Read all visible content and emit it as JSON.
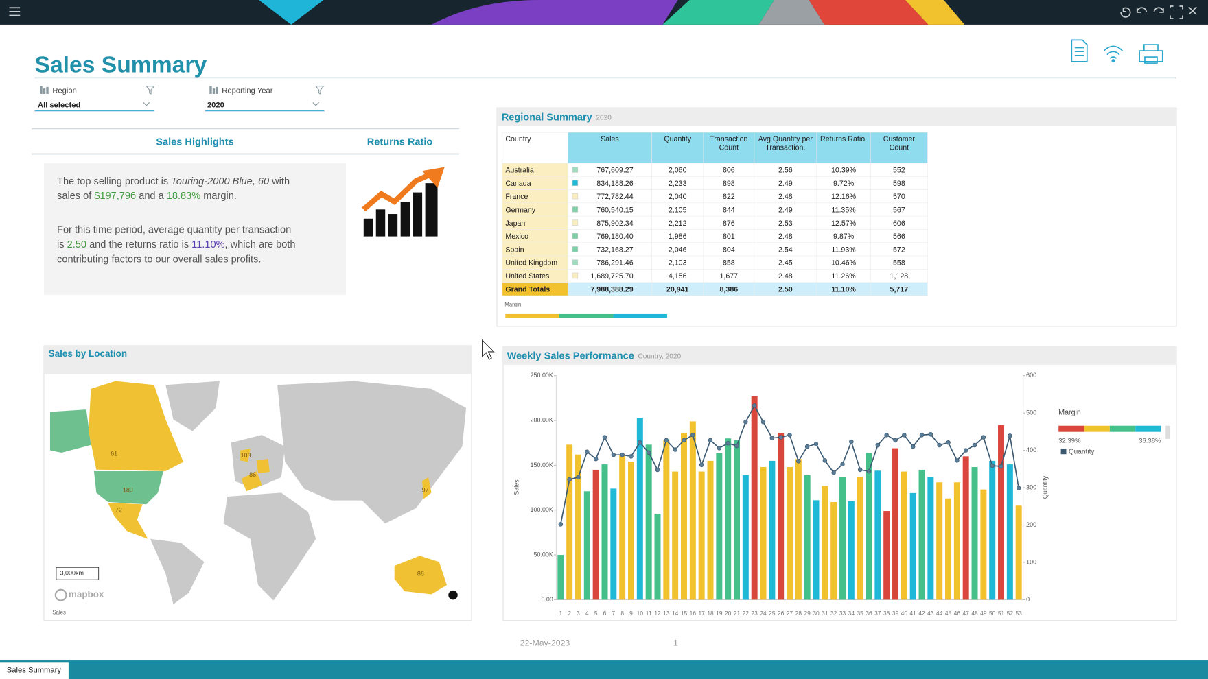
{
  "header": {
    "title": "Sales Summary"
  },
  "filters": [
    {
      "label": "Region",
      "value": "All selected"
    },
    {
      "label": "Reporting Year",
      "value": "2020"
    }
  ],
  "tabs": [
    "Sales Highlights",
    "Returns Ratio"
  ],
  "highlights": {
    "lines": [
      [
        {
          "text": "The top selling product is "
        },
        {
          "text": "Touring-2000 Blue, 60",
          "style": "italic"
        },
        {
          "text": " with"
        }
      ],
      [
        {
          "text": "sales of "
        },
        {
          "text": "$197,796",
          "color": "#3f9b3f"
        },
        {
          "text": " and a "
        },
        {
          "text": "18.83%",
          "color": "#3f9b3f"
        },
        {
          "text": " margin."
        }
      ],
      [
        {
          "text": "For this time period, average quantity per transaction"
        }
      ],
      [
        {
          "text": "is "
        },
        {
          "text": "2.50",
          "color": "#3f9b3f"
        },
        {
          "text": " and the returns ratio is "
        },
        {
          "text": "11.10%",
          "color": "#5a3fb0"
        },
        {
          "text": ", which are both"
        }
      ],
      [
        {
          "text": "contributing factors to our overall sales profits."
        }
      ]
    ]
  },
  "regional_summary": {
    "title": "Regional Summary",
    "subtitle": "2020",
    "header": [
      [
        "Country"
      ],
      [
        "Sales"
      ],
      [
        "Quantity"
      ],
      [
        "Transaction",
        "Count"
      ],
      [
        "Avg Quantity per",
        "Transaction."
      ],
      [
        "Returns Ratio."
      ],
      [
        "Customer",
        "Count"
      ]
    ],
    "rows": [
      [
        "Australia",
        "767,609.27",
        "2,060",
        "806",
        "2.56",
        "10.39%",
        "552"
      ],
      [
        "Canada",
        "834,188.26",
        "2,233",
        "898",
        "2.49",
        "9.72%",
        "598"
      ],
      [
        "France",
        "772,782.44",
        "2,040",
        "822",
        "2.48",
        "12.16%",
        "570"
      ],
      [
        "Germany",
        "760,540.15",
        "2,105",
        "844",
        "2.49",
        "11.35%",
        "567"
      ],
      [
        "Japan",
        "875,902.34",
        "2,212",
        "876",
        "2.53",
        "12.57%",
        "606"
      ],
      [
        "Mexico",
        "769,180.40",
        "1,986",
        "801",
        "2.48",
        "9.87%",
        "566"
      ],
      [
        "Spain",
        "732,168.27",
        "2,046",
        "804",
        "2.54",
        "11.93%",
        "572"
      ],
      [
        "United Kingdom",
        "786,291.46",
        "2,103",
        "858",
        "2.45",
        "10.46%",
        "558"
      ],
      [
        "United States",
        "1,689,725.70",
        "4,156",
        "1,677",
        "2.48",
        "11.26%",
        "1,128"
      ]
    ],
    "swatches": [
      "#9fdcc0",
      "#1fb8d6",
      "#fbeec0",
      "#7fd0a8",
      "#fbeec0",
      "#7fd0a8",
      "#7fd0a8",
      "#9fdcc0",
      "#fbeec0"
    ],
    "totals": [
      "Grand Totals",
      "7,988,388.29",
      "20,941",
      "8,386",
      "2.50",
      "11.10%",
      "5,717"
    ],
    "legend": "Margin"
  },
  "map": {
    "title": "Sales by Location",
    "scale": "3,000km",
    "brand": "mapbox",
    "legend": "Sales",
    "labels": [
      "61",
      "189",
      "72",
      "103",
      "86",
      "97",
      "86"
    ]
  },
  "chart_data": {
    "type": "bar",
    "title": "Weekly Sales Performance",
    "subtitle": "Country, 2020",
    "y_label": "Sales",
    "y2_label": "Quantity",
    "categories": [
      "1",
      "2",
      "3",
      "4",
      "5",
      "6",
      "7",
      "8",
      "9",
      "10",
      "11",
      "12",
      "13",
      "14",
      "15",
      "16",
      "17",
      "18",
      "19",
      "20",
      "21",
      "22",
      "23",
      "24",
      "25",
      "26",
      "27",
      "28",
      "29",
      "30",
      "31",
      "32",
      "33",
      "34",
      "35",
      "36",
      "37",
      "38",
      "39",
      "40",
      "41",
      "42",
      "43",
      "44",
      "45",
      "46",
      "47",
      "48",
      "49",
      "50",
      "51",
      "52",
      "53"
    ],
    "series": [
      {
        "values": [
          50000,
          173000,
          162000,
          121000,
          145000,
          151000,
          124000,
          162000,
          154000,
          203000,
          173000,
          96000,
          178000,
          143000,
          186000,
          199000,
          143000,
          155000,
          164000,
          180000,
          178000,
          139000,
          227000,
          148000,
          155000,
          186000,
          148000,
          157000,
          139000,
          111000,
          127000,
          109000,
          137000,
          110000,
          137000,
          164000,
          144000,
          99000,
          169000,
          143000,
          119000,
          145000,
          137000,
          131000,
          113000,
          131000,
          160000,
          148000,
          123000,
          155000,
          195000,
          151000,
          105000
        ],
        "colors": [
          "#45c08a",
          "#f2c12e",
          "#f2c12e",
          "#45c08a",
          "#d9473c",
          "#45c08a",
          "#1fb8d6",
          "#f2c12e",
          "#f2c12e",
          "#1fb8d6",
          "#45c08a",
          "#45c08a",
          "#f2c12e",
          "#f2c12e",
          "#f2c12e",
          "#f2c12e",
          "#f2c12e",
          "#f2c12e",
          "#45c08a",
          "#45c08a",
          "#45c08a",
          "#1fb8d6",
          "#d9473c",
          "#f2c12e",
          "#1fb8d6",
          "#d9473c",
          "#f2c12e",
          "#f2c12e",
          "#45c08a",
          "#1fb8d6",
          "#f2c12e",
          "#f2c12e",
          "#45c08a",
          "#1fb8d6",
          "#f2c12e",
          "#45c08a",
          "#1fb8d6",
          "#d9473c",
          "#d9473c",
          "#f2c12e",
          "#1fb8d6",
          "#45c08a",
          "#1fb8d6",
          "#f2c12e",
          "#f2c12e",
          "#f2c12e",
          "#d9473c",
          "#45c08a",
          "#f2c12e",
          "#1fb8d6",
          "#d9473c",
          "#1fb8d6",
          "#f2c12e"
        ]
      },
      {
        "name": "Quantity",
        "color": "#3d5a73",
        "axis": "y2",
        "values": [
          202,
          322,
          328,
          396,
          377,
          435,
          388,
          388,
          384,
          421,
          394,
          348,
          427,
          402,
          427,
          441,
          361,
          427,
          406,
          419,
          412,
          476,
          520,
          476,
          433,
          435,
          441,
          371,
          410,
          417,
          373,
          340,
          363,
          423,
          348,
          344,
          414,
          441,
          427,
          441,
          410,
          441,
          443,
          414,
          421,
          373,
          400,
          414,
          435,
          359,
          357,
          439,
          299
        ]
      }
    ],
    "ylim": [
      0,
      250000
    ],
    "yticks": [
      {
        "value": 0,
        "label": "0.00"
      },
      {
        "value": 50000,
        "label": "50.00K"
      },
      {
        "value": 100000,
        "label": "100.00K"
      },
      {
        "value": 150000,
        "label": "150.00K"
      },
      {
        "value": 200000,
        "label": "200.00K"
      },
      {
        "value": 250000,
        "label": "250.00K"
      }
    ],
    "y2lim": [
      0,
      600
    ],
    "y2ticks": [
      0,
      100,
      200,
      300,
      400,
      500,
      600
    ],
    "legend": {
      "title": "Margin",
      "min": "32.39%",
      "max": "36.38%",
      "colors": [
        "#d9473c",
        "#f2c12e",
        "#45c08a",
        "#1fb8d6"
      ]
    }
  },
  "footer": {
    "date": "22-May-2023",
    "page": "1",
    "tab": "Sales Summary"
  }
}
